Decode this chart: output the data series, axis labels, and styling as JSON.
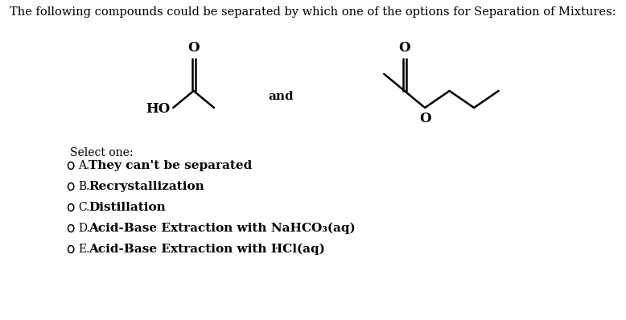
{
  "title": "The following compounds could be separated by which one of the options for Separation of Mixtures:",
  "select_one": "Select one:",
  "options": [
    [
      "A.",
      "They can't be separated"
    ],
    [
      "B.",
      "Recrystallization"
    ],
    [
      "C.",
      "Distillation"
    ],
    [
      "D.",
      "Acid-Base Extraction with NaHCO₃(aq)"
    ],
    [
      "E.",
      "Acid-Base Extraction with HCl(aq)"
    ]
  ],
  "bg_color": "#ffffff",
  "text_color": "#000000",
  "title_fontsize": 10.5,
  "option_letter_fontsize": 10,
  "option_text_fontsize": 11,
  "select_fontsize": 10
}
